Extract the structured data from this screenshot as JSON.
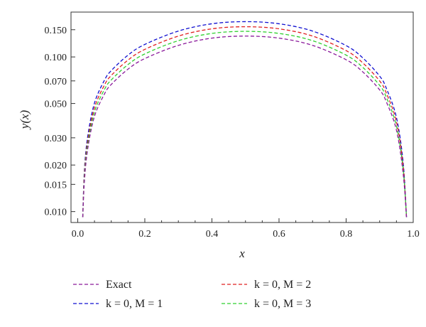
{
  "chart_data": {
    "type": "line",
    "xlabel": "x",
    "ylabel": "y(x)",
    "xlim": [
      -0.02,
      1.0
    ],
    "ylim": [
      0.0085,
      0.195
    ],
    "y_scale": "log",
    "grid": false,
    "legend_position": "bottom",
    "x_ticks": [
      0.0,
      0.2,
      0.4,
      0.6,
      0.8,
      1.0
    ],
    "x_tick_labels": [
      "0.0",
      "0.2",
      "0.4",
      "0.6",
      "0.8",
      "1.0"
    ],
    "y_ticks": [
      0.01,
      0.015,
      0.02,
      0.03,
      0.05,
      0.07,
      0.1,
      0.15
    ],
    "y_tick_labels": [
      "0.010",
      "0.015",
      "0.020",
      "0.030",
      "0.050",
      "0.070",
      "0.100",
      "0.150"
    ],
    "series": [
      {
        "name": "Exact",
        "color": "#8b1a9b",
        "style": "dashed",
        "x": [
          0.015,
          0.02,
          0.03,
          0.05,
          0.08,
          0.1,
          0.15,
          0.2,
          0.3,
          0.4,
          0.5,
          0.6,
          0.7,
          0.8,
          0.85,
          0.9,
          0.92,
          0.95,
          0.97,
          0.98
        ],
        "y": [
          0.0092,
          0.0158,
          0.0256,
          0.0413,
          0.0578,
          0.0664,
          0.0834,
          0.0976,
          0.1188,
          0.1323,
          0.1364,
          0.1323,
          0.1188,
          0.0959,
          0.0799,
          0.0612,
          0.0512,
          0.0336,
          0.0176,
          0.0092
        ]
      },
      {
        "name": "k = 0, M = 1",
        "color": "#1010d0",
        "style": "dashed",
        "x": [
          0.015,
          0.02,
          0.03,
          0.05,
          0.08,
          0.1,
          0.15,
          0.2,
          0.3,
          0.4,
          0.5,
          0.6,
          0.7,
          0.8,
          0.85,
          0.9,
          0.92,
          0.95,
          0.97,
          0.98
        ],
        "y": [
          0.0092,
          0.0186,
          0.0308,
          0.0504,
          0.0709,
          0.0816,
          0.1028,
          0.1205,
          0.147,
          0.1639,
          0.1691,
          0.1639,
          0.147,
          0.1184,
          0.0984,
          0.0751,
          0.0626,
          0.0406,
          0.0208,
          0.0092
        ]
      },
      {
        "name": "k = 0, M = 2",
        "color": "#e02020",
        "style": "dashed",
        "x": [
          0.015,
          0.02,
          0.03,
          0.05,
          0.08,
          0.1,
          0.15,
          0.2,
          0.3,
          0.4,
          0.5,
          0.6,
          0.7,
          0.8,
          0.85,
          0.9,
          0.92,
          0.95,
          0.97,
          0.98
        ],
        "y": [
          0.0092,
          0.0176,
          0.0288,
          0.047,
          0.066,
          0.0759,
          0.0955,
          0.1119,
          0.1364,
          0.152,
          0.1568,
          0.152,
          0.1364,
          0.1099,
          0.0914,
          0.0699,
          0.0583,
          0.0381,
          0.0197,
          0.0092
        ]
      },
      {
        "name": "k = 0, M = 3",
        "color": "#30d030",
        "style": "dashed",
        "x": [
          0.015,
          0.02,
          0.03,
          0.05,
          0.08,
          0.1,
          0.15,
          0.2,
          0.3,
          0.4,
          0.5,
          0.6,
          0.7,
          0.8,
          0.85,
          0.9,
          0.92,
          0.95,
          0.97,
          0.98
        ],
        "y": [
          0.0092,
          0.0167,
          0.0272,
          0.0441,
          0.0618,
          0.071,
          0.0893,
          0.1046,
          0.1274,
          0.1419,
          0.1464,
          0.1419,
          0.1274,
          0.1028,
          0.0855,
          0.0655,
          0.0547,
          0.0358,
          0.0187,
          0.0092
        ]
      }
    ]
  }
}
